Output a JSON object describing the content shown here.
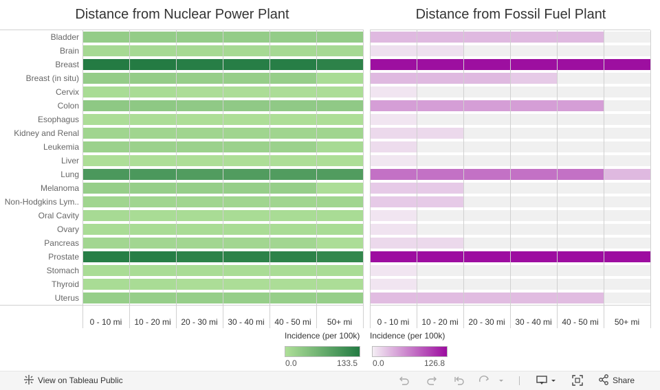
{
  "footer": {
    "view_label": "View on Tableau Public",
    "share_label": "Share"
  },
  "colors": {
    "green_low": "#aedf98",
    "green_high": "#237b43",
    "purple_low": "#f4eef4",
    "purple_high": "#9c0c9f",
    "empty": "#f0f0f0"
  },
  "chart_data": [
    {
      "type": "heatmap",
      "title": "Distance from Nuclear Power Plant",
      "legend_title": "Incidence (per 100k)",
      "legend_min": "0.0",
      "legend_max": "133.5",
      "color_domain": [
        0,
        133.5
      ],
      "color_min_value": 18,
      "categories": [
        "Bladder",
        "Brain",
        "Breast",
        "Breast (in situ)",
        "Cervix",
        "Colon",
        "Esophagus",
        "Kidney and Renal",
        "Leukemia",
        "Liver",
        "Lung",
        "Melanoma",
        "Non-Hodgkins Lym..",
        "Oral Cavity",
        "Ovary",
        "Pancreas",
        "Prostate",
        "Stomach",
        "Thyroid",
        "Uterus"
      ],
      "x": [
        "0 - 10 mi",
        "10 - 20 mi",
        "20 - 30 mi",
        "30 - 40 mi",
        "40 - 50 mi",
        "50+ mi"
      ],
      "values": [
        [
          40,
          40,
          40,
          40,
          40,
          40
        ],
        [
          25,
          25,
          25,
          25,
          25,
          25
        ],
        [
          133,
          133,
          130,
          130,
          130,
          125
        ],
        [
          40,
          40,
          38,
          38,
          38,
          22
        ],
        [
          22,
          22,
          20,
          20,
          20,
          20
        ],
        [
          45,
          45,
          43,
          43,
          43,
          43
        ],
        [
          20,
          20,
          19,
          19,
          19,
          19
        ],
        [
          30,
          30,
          30,
          30,
          30,
          30
        ],
        [
          34,
          34,
          34,
          34,
          34,
          24
        ],
        [
          19,
          19,
          19,
          19,
          19,
          19
        ],
        [
          100,
          100,
          95,
          95,
          95,
          95
        ],
        [
          38,
          38,
          38,
          38,
          38,
          20
        ],
        [
          30,
          30,
          30,
          30,
          30,
          30
        ],
        [
          24,
          22,
          22,
          22,
          22,
          22
        ],
        [
          22,
          22,
          22,
          22,
          22,
          22
        ],
        [
          28,
          28,
          28,
          28,
          28,
          20
        ],
        [
          130,
          130,
          125,
          125,
          125,
          120
        ],
        [
          22,
          22,
          22,
          22,
          22,
          22
        ],
        [
          22,
          22,
          20,
          20,
          20,
          20
        ],
        [
          38,
          38,
          38,
          38,
          38,
          38
        ]
      ]
    },
    {
      "type": "heatmap",
      "title": "Distance from Fossil Fuel Plant",
      "legend_title": "Incidence (per 100k)",
      "legend_min": "0.0",
      "legend_max": "126.8",
      "color_domain": [
        0,
        126.8
      ],
      "color_min_value": 0,
      "categories": [
        "Bladder",
        "Brain",
        "Breast",
        "Breast (in situ)",
        "Cervix",
        "Colon",
        "Esophagus",
        "Kidney and Renal",
        "Leukemia",
        "Liver",
        "Lung",
        "Melanoma",
        "Non-Hodgkins Lym..",
        "Oral Cavity",
        "Ovary",
        "Pancreas",
        "Prostate",
        "Stomach",
        "Thyroid",
        "Uterus"
      ],
      "x": [
        "0 - 10 mi",
        "10 - 20 mi",
        "20 - 30 mi",
        "30 - 40 mi",
        "40 - 50 mi",
        "50+ mi"
      ],
      "values": [
        [
          30,
          30,
          30,
          30,
          30,
          null
        ],
        [
          8,
          8,
          null,
          null,
          null,
          null
        ],
        [
          125,
          125,
          125,
          125,
          125,
          125
        ],
        [
          30,
          30,
          30,
          20,
          null,
          null
        ],
        [
          5,
          null,
          null,
          null,
          null,
          null
        ],
        [
          45,
          45,
          45,
          45,
          45,
          null
        ],
        [
          5,
          null,
          null,
          null,
          null,
          null
        ],
        [
          12,
          12,
          null,
          null,
          null,
          null
        ],
        [
          10,
          null,
          null,
          null,
          null,
          null
        ],
        [
          4,
          null,
          null,
          null,
          null,
          null
        ],
        [
          70,
          70,
          70,
          70,
          70,
          30
        ],
        [
          20,
          20,
          null,
          null,
          null,
          null
        ],
        [
          20,
          20,
          null,
          null,
          null,
          null
        ],
        [
          5,
          null,
          null,
          null,
          null,
          null
        ],
        [
          6,
          null,
          null,
          null,
          null,
          null
        ],
        [
          12,
          12,
          null,
          null,
          null,
          null
        ],
        [
          126,
          126,
          126,
          126,
          126,
          126
        ],
        [
          5,
          null,
          null,
          null,
          null,
          null
        ],
        [
          5,
          null,
          null,
          null,
          null,
          null
        ],
        [
          28,
          28,
          28,
          28,
          28,
          null
        ]
      ]
    }
  ]
}
